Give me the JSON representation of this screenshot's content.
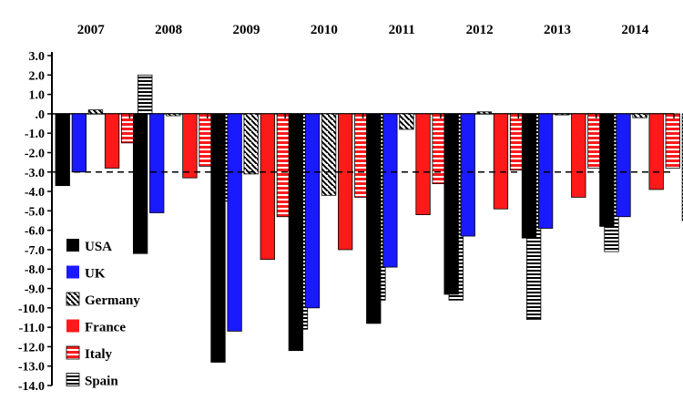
{
  "chart_data": {
    "type": "bar",
    "title": "",
    "xlabel": "",
    "ylabel": "",
    "categories": [
      "2007",
      "2008",
      "2009",
      "2010",
      "2011",
      "2012",
      "2013",
      "2014"
    ],
    "ylim": [
      -14,
      3
    ],
    "yticks": [
      "3.0",
      "2.0",
      "1.0",
      ".0",
      "-1.0",
      "-2.0",
      "-3.0",
      "-4.0",
      "-5.0",
      "-6.0",
      "-7.0",
      "-8.0",
      "-9.0",
      "-10.0",
      "-11.0",
      "-12.0",
      "-13.0",
      "-14.0"
    ],
    "reference_line": -3,
    "grid": false,
    "legend_position": "bottom-left",
    "series": [
      {
        "name": "USA",
        "pattern": "solid",
        "color": "#000000",
        "values": [
          -3.7,
          -7.2,
          -12.8,
          -12.2,
          -10.8,
          -9.3,
          -6.4,
          -5.8
        ]
      },
      {
        "name": "UK",
        "pattern": "solid",
        "color": "#1a1aff",
        "values": [
          -3.0,
          -5.1,
          -11.2,
          -10.0,
          -7.9,
          -6.3,
          -5.9,
          -5.3
        ]
      },
      {
        "name": "Germany",
        "pattern": "diagonal-hatch",
        "color": "#000000",
        "values": [
          0.2,
          -0.1,
          -3.1,
          -4.2,
          -0.8,
          0.1,
          0.0,
          -0.2
        ]
      },
      {
        "name": "France",
        "pattern": "solid",
        "color": "#ff1a1a",
        "values": [
          -2.8,
          -3.3,
          -7.5,
          -7.0,
          -5.2,
          -4.9,
          -4.3,
          -3.9
        ]
      },
      {
        "name": "Italy",
        "pattern": "red-horizontal-stripes",
        "color": "#ff1a1a",
        "values": [
          -1.5,
          -2.7,
          -5.3,
          -4.3,
          -3.6,
          -2.9,
          -2.8,
          -2.8
        ]
      },
      {
        "name": "Spain",
        "pattern": "horizontal-stripes",
        "color": "#000000",
        "values": [
          2.0,
          -4.5,
          -11.1,
          -9.6,
          -9.6,
          -10.6,
          -7.1,
          -5.5
        ]
      }
    ]
  }
}
